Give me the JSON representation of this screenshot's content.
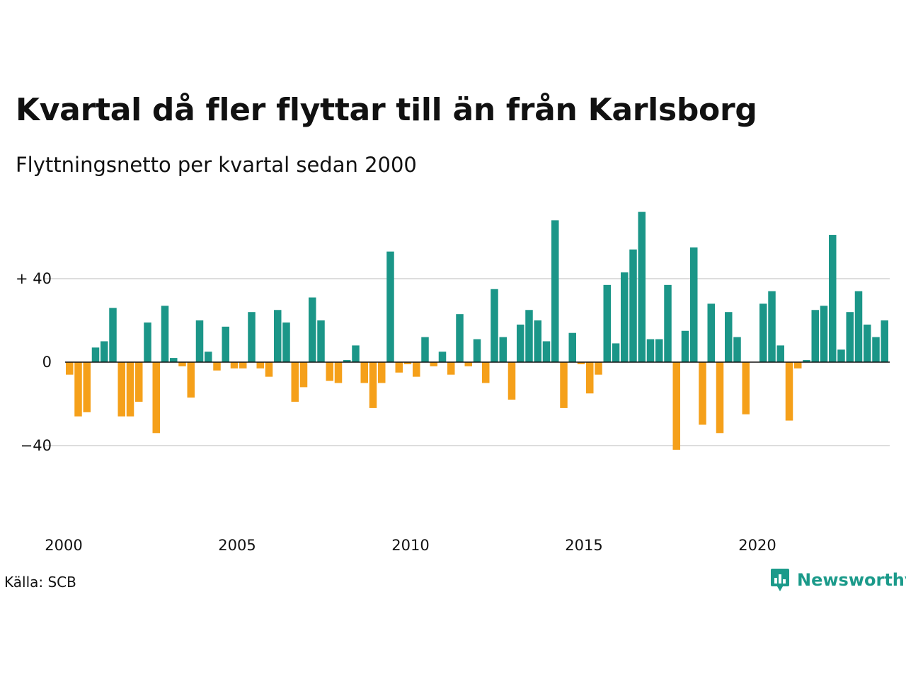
{
  "title": "Kvartal då fler flyttar till än från Karlsborg",
  "subtitle": "Flyttningsnetto per kvartal sedan 2000",
  "source": "Källa: SCB",
  "brand": {
    "name": "Newsworthy",
    "icon": "newsworthy-logo-icon"
  },
  "colors": {
    "positive": "#1b9688",
    "negative": "#f5a01a",
    "grid": "#dddddd"
  },
  "chart_data": {
    "type": "bar",
    "title": "Kvartal då fler flyttar till än från Karlsborg",
    "subtitle": "Flyttningsnetto per kvartal sedan 2000",
    "xlabel": "",
    "ylabel": "",
    "ylim": [
      -62,
      74
    ],
    "grid": true,
    "legend": "none",
    "x_start_year": 2000,
    "x_tick_labels": [
      "2000",
      "2005",
      "2010",
      "2015",
      "2020"
    ],
    "y_ticks": [
      {
        "value": 40,
        "label": "+ 40"
      },
      {
        "value": 0,
        "label": "0"
      },
      {
        "value": -40,
        "label": "−40"
      }
    ],
    "categories": [
      "2000K1",
      "2000K2",
      "2000K3",
      "2000K4",
      "2001K1",
      "2001K2",
      "2001K3",
      "2001K4",
      "2002K1",
      "2002K2",
      "2002K3",
      "2002K4",
      "2003K1",
      "2003K2",
      "2003K3",
      "2003K4",
      "2004K1",
      "2004K2",
      "2004K3",
      "2004K4",
      "2005K1",
      "2005K2",
      "2005K3",
      "2005K4",
      "2006K1",
      "2006K2",
      "2006K3",
      "2006K4",
      "2007K1",
      "2007K2",
      "2007K3",
      "2007K4",
      "2008K1",
      "2008K2",
      "2008K3",
      "2008K4",
      "2009K1",
      "2009K2",
      "2009K3",
      "2009K4",
      "2010K1",
      "2010K2",
      "2010K3",
      "2010K4",
      "2011K1",
      "2011K2",
      "2011K3",
      "2011K4",
      "2012K1",
      "2012K2",
      "2012K3",
      "2012K4",
      "2013K1",
      "2013K2",
      "2013K3",
      "2013K4",
      "2014K1",
      "2014K2",
      "2014K3",
      "2014K4",
      "2015K1",
      "2015K2",
      "2015K3",
      "2015K4",
      "2016K1",
      "2016K2",
      "2016K3",
      "2016K4",
      "2017K1",
      "2017K2",
      "2017K3",
      "2017K4",
      "2018K1",
      "2018K2",
      "2018K3",
      "2018K4",
      "2019K1",
      "2019K2",
      "2019K3",
      "2019K4",
      "2020K1",
      "2020K2",
      "2020K3",
      "2020K4",
      "2021K1",
      "2021K2",
      "2021K3",
      "2021K4",
      "2022K1",
      "2022K2",
      "2022K3",
      "2022K4",
      "2023K1",
      "2023K2",
      "2023K3",
      "2023K4"
    ],
    "values": [
      -6,
      -26,
      -24,
      7,
      10,
      26,
      -26,
      -26,
      -19,
      19,
      -34,
      27,
      2,
      -2,
      -17,
      20,
      5,
      -4,
      17,
      -3,
      -3,
      24,
      -3,
      -7,
      25,
      19,
      -19,
      -12,
      31,
      20,
      -9,
      -10,
      1,
      8,
      -10,
      -22,
      -10,
      53,
      -5,
      -1,
      -7,
      12,
      -2,
      5,
      -6,
      23,
      -2,
      11,
      -10,
      35,
      12,
      -18,
      18,
      25,
      20,
      10,
      68,
      -22,
      14,
      -1,
      -15,
      -6,
      37,
      9,
      43,
      54,
      72,
      11,
      11,
      37,
      -42,
      15,
      55,
      -30,
      28,
      -34,
      24,
      12,
      -25,
      0,
      28,
      34,
      8,
      -28,
      -3,
      1,
      25,
      27,
      61,
      6,
      24,
      34,
      18,
      12,
      20,
      0
    ]
  }
}
